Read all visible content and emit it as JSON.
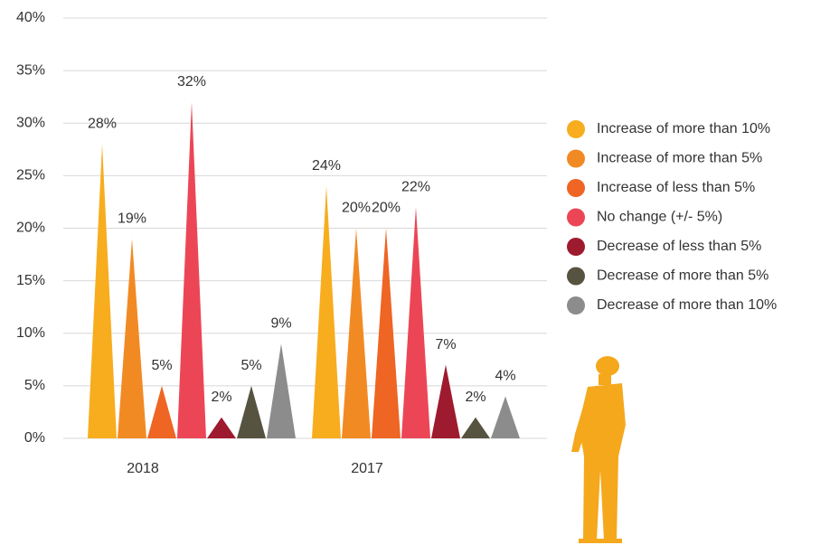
{
  "chart_data": {
    "type": "cone",
    "categories": [
      "2018",
      "2017"
    ],
    "series": [
      {
        "name": "Increase of more than 10%",
        "color": "#f7ad1e",
        "values": [
          28,
          24
        ],
        "value_labels": [
          "28%",
          "24%"
        ]
      },
      {
        "name": "Increase of more than 5%",
        "color": "#f28a24",
        "values": [
          19,
          20
        ],
        "value_labels": [
          "19%",
          "20%"
        ]
      },
      {
        "name": "Increase of less than 5%",
        "color": "#ee6524",
        "values": [
          5,
          20
        ],
        "value_labels": [
          "5%",
          "20%"
        ]
      },
      {
        "name": "No change (+/- 5%)",
        "color": "#ec4656",
        "values": [
          32,
          22
        ],
        "value_labels": [
          "32%",
          "22%"
        ]
      },
      {
        "name": "Decrease of less than 5%",
        "color": "#9e1a2e",
        "values": [
          2,
          7
        ],
        "value_labels": [
          "2%",
          "7%"
        ]
      },
      {
        "name": "Decrease of more than 5%",
        "color": "#565340",
        "values": [
          5,
          2
        ],
        "value_labels": [
          "5%",
          "2%"
        ]
      },
      {
        "name": "Decrease of more than 10%",
        "color": "#8c8c8c",
        "values": [
          9,
          4
        ],
        "value_labels": [
          "9%",
          "4%"
        ]
      }
    ],
    "ylim": [
      0,
      40
    ],
    "yticks": [
      {
        "value": 0,
        "label": "0%"
      },
      {
        "value": 5,
        "label": "5%"
      },
      {
        "value": 10,
        "label": "10%"
      },
      {
        "value": 15,
        "label": "15%"
      },
      {
        "value": 20,
        "label": "20%"
      },
      {
        "value": 25,
        "label": "25%"
      },
      {
        "value": 30,
        "label": "30%"
      },
      {
        "value": 35,
        "label": "35%"
      },
      {
        "value": 40,
        "label": "40%"
      }
    ],
    "grid": true,
    "legend": "right"
  }
}
